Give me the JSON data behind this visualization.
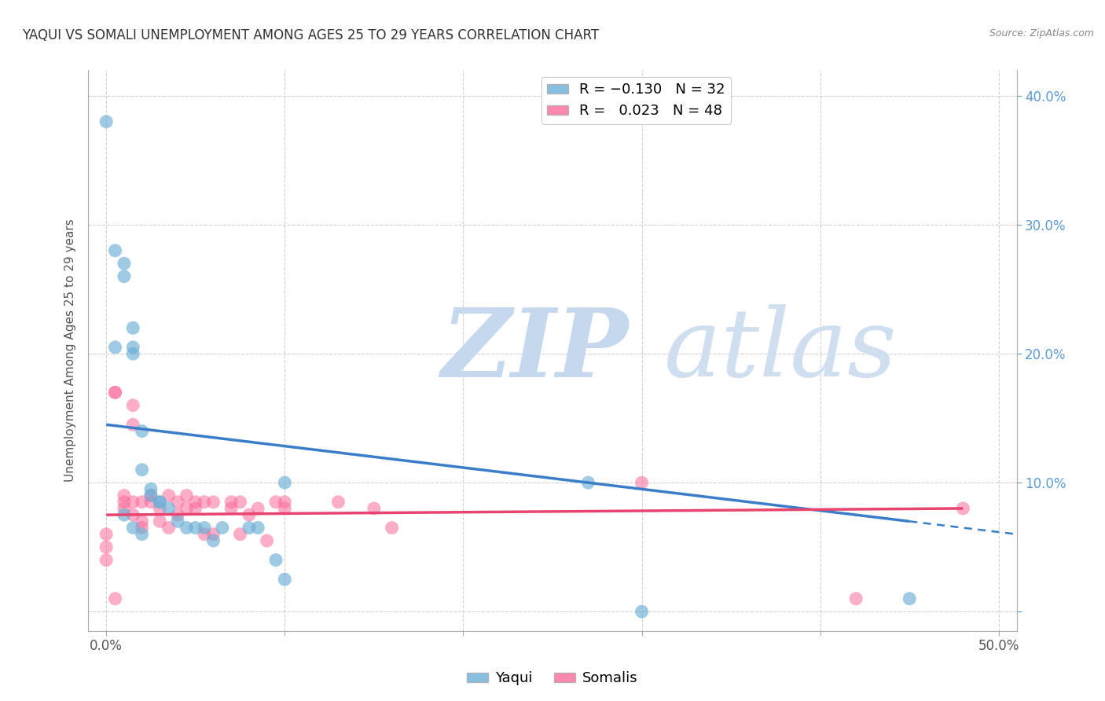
{
  "title": "YAQUI VS SOMALI UNEMPLOYMENT AMONG AGES 25 TO 29 YEARS CORRELATION CHART",
  "source": "Source: ZipAtlas.com",
  "xlabel": "",
  "ylabel": "Unemployment Among Ages 25 to 29 years",
  "xlim": [
    -1.0,
    51.0
  ],
  "ylim": [
    -1.5,
    42.0
  ],
  "xticks": [
    0.0,
    50.0
  ],
  "xticklabels": [
    "0.0%",
    "50.0%"
  ],
  "yticks": [
    0.0,
    10.0,
    20.0,
    30.0,
    40.0
  ],
  "yticklabels_left": [
    "",
    "",
    "",
    "",
    ""
  ],
  "yticklabels_right": [
    "",
    "10.0%",
    "20.0%",
    "30.0%",
    "40.0%"
  ],
  "yaqui_color": "#6baed6",
  "somali_color": "#fb6a9a",
  "yaqui_R": -0.13,
  "yaqui_N": 32,
  "somali_R": 0.023,
  "somali_N": 48,
  "yaqui_x": [
    0.0,
    0.5,
    1.0,
    1.0,
    1.5,
    1.5,
    1.5,
    2.0,
    2.0,
    2.5,
    2.5,
    3.0,
    3.0,
    3.5,
    4.0,
    4.5,
    5.0,
    5.5,
    6.0,
    6.5,
    8.0,
    8.5,
    9.5,
    10.0,
    10.0,
    27.0,
    30.0,
    45.0,
    0.5,
    1.0,
    1.5,
    2.0
  ],
  "yaqui_y": [
    38.0,
    28.0,
    27.0,
    26.0,
    22.0,
    20.5,
    20.0,
    14.0,
    11.0,
    9.5,
    9.0,
    8.5,
    8.5,
    8.0,
    7.0,
    6.5,
    6.5,
    6.5,
    5.5,
    6.5,
    6.5,
    6.5,
    4.0,
    10.0,
    2.5,
    10.0,
    0.0,
    1.0,
    20.5,
    7.5,
    6.5,
    6.0
  ],
  "somali_x": [
    0.0,
    0.0,
    0.0,
    0.5,
    0.5,
    1.0,
    1.0,
    1.0,
    1.5,
    1.5,
    1.5,
    1.5,
    2.0,
    2.0,
    2.0,
    2.5,
    2.5,
    3.0,
    3.0,
    3.5,
    3.5,
    4.0,
    4.0,
    4.5,
    4.5,
    5.0,
    5.0,
    5.5,
    5.5,
    6.0,
    6.0,
    7.0,
    7.0,
    7.5,
    7.5,
    8.0,
    8.5,
    9.0,
    9.5,
    10.0,
    10.0,
    13.0,
    15.0,
    16.0,
    30.0,
    42.0,
    48.0,
    0.5
  ],
  "somali_y": [
    6.0,
    5.0,
    4.0,
    17.0,
    17.0,
    9.0,
    8.5,
    8.0,
    16.0,
    14.5,
    8.5,
    7.5,
    8.5,
    7.0,
    6.5,
    9.0,
    8.5,
    8.0,
    7.0,
    9.0,
    6.5,
    8.5,
    7.5,
    9.0,
    8.0,
    8.5,
    8.0,
    8.5,
    6.0,
    8.5,
    6.0,
    8.5,
    8.0,
    6.0,
    8.5,
    7.5,
    8.0,
    5.5,
    8.5,
    8.5,
    8.0,
    8.5,
    8.0,
    6.5,
    10.0,
    1.0,
    8.0,
    1.0
  ],
  "yaqui_line_x0": 0.0,
  "yaqui_line_y0": 14.5,
  "yaqui_line_x1": 45.0,
  "yaqui_line_y1": 7.0,
  "yaqui_dash_x0": 45.0,
  "yaqui_dash_y0": 7.0,
  "yaqui_dash_x1": 51.0,
  "yaqui_dash_y1": 6.0,
  "somali_line_x0": 0.0,
  "somali_line_y0": 7.5,
  "somali_line_x1": 48.0,
  "somali_line_y1": 8.0,
  "background_color": "#ffffff",
  "grid_color": "#cccccc",
  "watermark_zip_color": "#b8cfe8",
  "watermark_atlas_color": "#c8d8ec"
}
